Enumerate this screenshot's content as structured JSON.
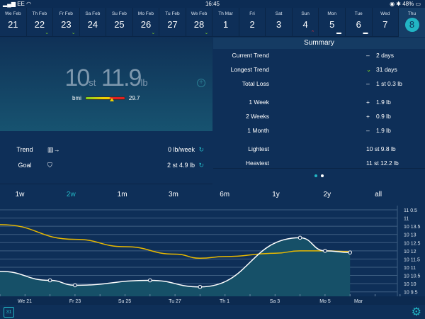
{
  "status_bar": {
    "carrier": "EE",
    "time": "16:45",
    "battery": "48%"
  },
  "date_strip": [
    {
      "weekday": "We Feb",
      "day": "21",
      "marker": ""
    },
    {
      "weekday": "Th Feb",
      "day": "22",
      "marker": "down"
    },
    {
      "weekday": "Fr Feb",
      "day": "23",
      "marker": "down"
    },
    {
      "weekday": "Sa Feb",
      "day": "24",
      "marker": ""
    },
    {
      "weekday": "Su Feb",
      "day": "25",
      "marker": ""
    },
    {
      "weekday": "Mo Feb",
      "day": "26",
      "marker": "down"
    },
    {
      "weekday": "Tu Feb",
      "day": "27",
      "marker": ""
    },
    {
      "weekday": "We Feb",
      "day": "28",
      "marker": "down"
    },
    {
      "weekday": "Th Mar",
      "day": "1",
      "marker": ""
    },
    {
      "weekday": "Fri",
      "day": "2",
      "marker": ""
    },
    {
      "weekday": "Sat",
      "day": "3",
      "marker": ""
    },
    {
      "weekday": "Sun",
      "day": "4",
      "marker": "up"
    },
    {
      "weekday": "Mon",
      "day": "5",
      "marker": "flat"
    },
    {
      "weekday": "Tue",
      "day": "6",
      "marker": "flat"
    },
    {
      "weekday": "Wed",
      "day": "7",
      "marker": ""
    },
    {
      "weekday": "Thu",
      "day": "8",
      "marker": "",
      "selected": true
    }
  ],
  "weight": {
    "st": "10",
    "st_unit": "st",
    "lb": "11.9",
    "lb_unit": "lb",
    "bmi_label": "bmi",
    "bmi": "29.7"
  },
  "trend": {
    "label": "Trend",
    "value": "0 lb/week"
  },
  "goal": {
    "label": "Goal",
    "value": "2 st 4.9 lb"
  },
  "summary": {
    "title": "Summary",
    "rows": [
      {
        "key": "Current Trend",
        "sign": "–",
        "value": "2 days"
      },
      {
        "key": "Longest Trend",
        "sign": "⌄",
        "value": "31 days"
      },
      {
        "key": "Total Loss",
        "sign": "–",
        "value": "1 st 0.3 lb"
      },
      {
        "key": "1 Week",
        "sign": "+",
        "value": "1.9 lb"
      },
      {
        "key": "2 Weeks",
        "sign": "+",
        "value": "0.9 lb"
      },
      {
        "key": "1 Month",
        "sign": "–",
        "value": "1.9 lb"
      },
      {
        "key": "Lightest",
        "sign": "",
        "value": "10 st 9.8 lb"
      },
      {
        "key": "Heaviest",
        "sign": "",
        "value": "11 st 12.2 lb"
      }
    ],
    "page": 1,
    "pages": 2
  },
  "ranges": {
    "items": [
      "1w",
      "2w",
      "1m",
      "3m",
      "6m",
      "1y",
      "2y",
      "all"
    ],
    "selected": "2w"
  },
  "colors": {
    "accent": "#22b5c4",
    "trend_line": "#e8b800",
    "weight_line": "#ffffff",
    "down": "#7ed321",
    "up": "#e0303a",
    "area": "#165068"
  },
  "chart_data": {
    "type": "line",
    "x_tick_labels": [
      "We 21",
      "Fr 23",
      "Su 25",
      "Tu 27",
      "Th 1",
      "Sa 3",
      "Mo 5",
      "Mar"
    ],
    "y_tick_labels": [
      "11 0.5",
      "11",
      "10 13.5",
      "10 13",
      "10 12.5",
      "10 12",
      "10 11.5",
      "10 11",
      "10 10.5",
      "10 10",
      "10 9.5"
    ],
    "y_unit": "lb (st lb)",
    "ylim": [
      149.5,
      154.5
    ],
    "grid": true,
    "series": [
      {
        "kind": "weight",
        "x": [
          "Feb 20",
          "Feb 22",
          "Feb 23",
          "Feb 26",
          "Feb 28",
          "Mar 4",
          "Mar 5",
          "Mar 6"
        ],
        "y": [
          150.75,
          150.2,
          149.9,
          150.2,
          149.8,
          152.8,
          152.0,
          151.9
        ]
      },
      {
        "kind": "trend",
        "x": [
          "Feb 20",
          "Feb 23",
          "Feb 25",
          "Feb 27",
          "Feb 28",
          "Mar 1",
          "Mar 3",
          "Mar 4",
          "Mar 5",
          "Mar 6"
        ],
        "y": [
          153.6,
          152.7,
          152.25,
          151.8,
          151.55,
          151.65,
          151.85,
          152.0,
          152.0,
          151.95
        ]
      }
    ]
  }
}
